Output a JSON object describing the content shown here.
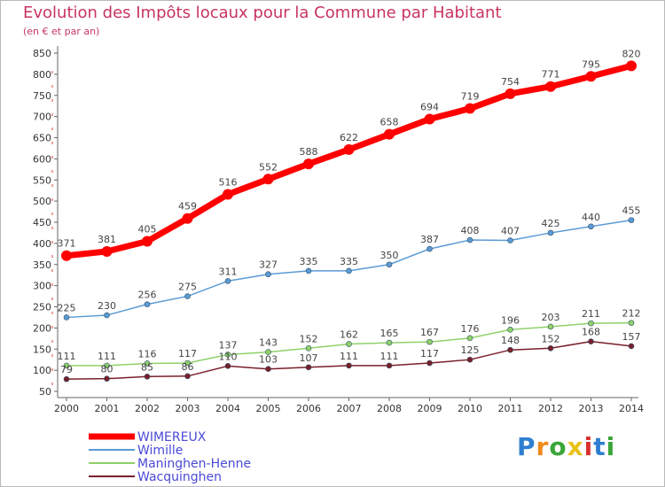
{
  "header": {
    "title": "Evolution des Impôts locaux pour la Commune par Habitant",
    "subtitle": "(en € et par an)"
  },
  "logo": {
    "text": "Proxiti",
    "colors": [
      "#2f7fd1",
      "#f08a1c",
      "#3aa63a",
      "#e8c21a",
      "#d93030",
      "#2f7fd1",
      "#3aa63a"
    ]
  },
  "chart_data": {
    "type": "line",
    "x": [
      "2000",
      "2001",
      "2002",
      "2003",
      "2004",
      "2005",
      "2006",
      "2007",
      "2008",
      "2009",
      "2010",
      "2011",
      "2012",
      "2013",
      "2014"
    ],
    "ylim": [
      50,
      850
    ],
    "yticks": [
      50,
      100,
      150,
      200,
      250,
      300,
      350,
      400,
      450,
      500,
      550,
      600,
      650,
      700,
      750,
      800,
      850
    ],
    "grid": false,
    "legend_position": "bottom-left",
    "series": [
      {
        "name": "WIMEREUX",
        "color": "#ff0000",
        "values": [
          371,
          381,
          405,
          459,
          516,
          552,
          588,
          622,
          658,
          694,
          719,
          754,
          771,
          795,
          820
        ]
      },
      {
        "name": "Wimille",
        "color": "#5b9bd5",
        "values": [
          225,
          230,
          256,
          275,
          311,
          327,
          335,
          335,
          350,
          387,
          408,
          407,
          425,
          440,
          455
        ]
      },
      {
        "name": "Maninghen-Henne",
        "color": "#8fd16a",
        "values": [
          111,
          111,
          116,
          117,
          137,
          143,
          152,
          162,
          165,
          167,
          176,
          196,
          203,
          211,
          212
        ]
      },
      {
        "name": "Wacquinghen",
        "color": "#7a1f2a",
        "values": [
          79,
          80,
          85,
          86,
          110,
          103,
          107,
          111,
          111,
          117,
          125,
          148,
          152,
          168,
          157
        ]
      }
    ]
  }
}
